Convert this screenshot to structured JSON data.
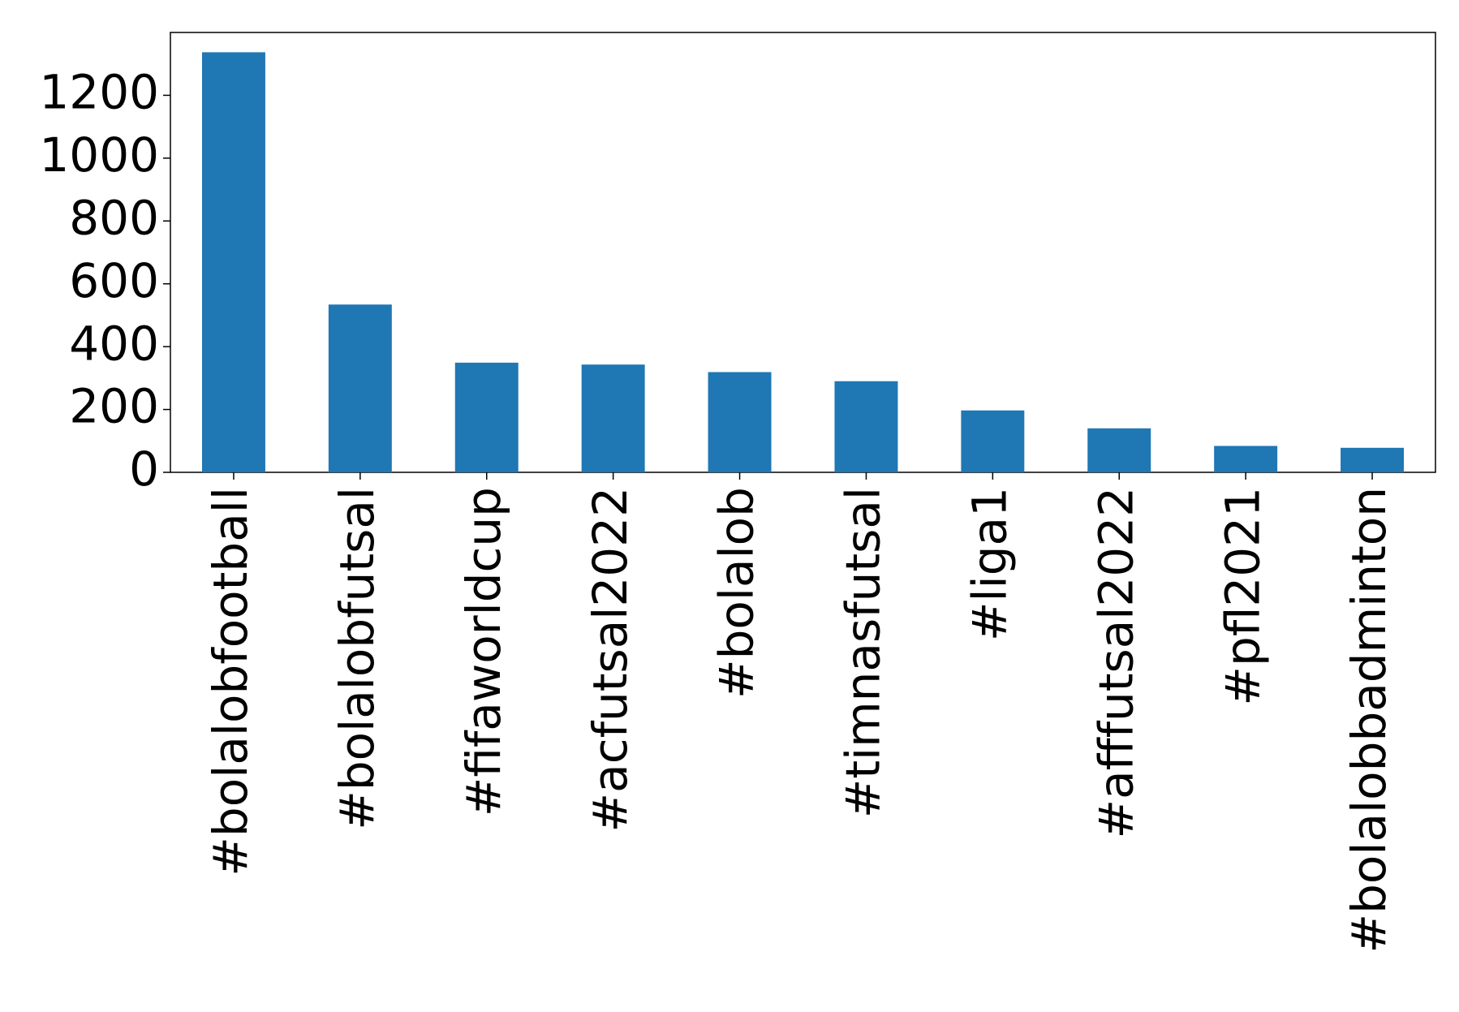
{
  "chart_data": {
    "type": "bar",
    "categories": [
      "#bolalobfootball",
      "#bolalobfutsal",
      "#fifaworldcup",
      "#acfutsal2022",
      "#bolalob",
      "#timnasfutsal",
      "#liga1",
      "#afffutsal2022",
      "#pfl2021",
      "#bolalobbadminton"
    ],
    "values": [
      1337,
      534,
      349,
      343,
      319,
      290,
      197,
      140,
      84,
      78
    ],
    "color": "#1f77b4",
    "ylim": [
      0,
      1400
    ],
    "yticks": [
      0,
      200,
      400,
      600,
      800,
      1000,
      1200
    ],
    "grid": false
  }
}
